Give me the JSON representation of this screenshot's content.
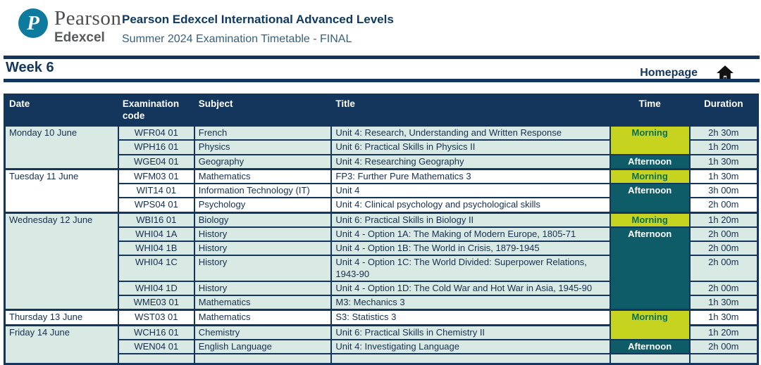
{
  "header": {
    "logo_brand": "Pearson",
    "logo_sub": "Edexcel",
    "logo_letter": "P",
    "title": "Pearson Edexcel International Advanced Levels",
    "subtitle": "Summer 2024 Examination Timetable - FINAL"
  },
  "weekbar": {
    "week_label": "Week 6",
    "homepage_label": "Homepage",
    "home_icon": "home-icon"
  },
  "colors": {
    "navy": "#14365c",
    "mint_row": "#d9eae5",
    "morning_bg": "#c6d41f",
    "morning_text": "#0d6e52",
    "afternoon_bg": "#0d5c68",
    "afternoon_text": "#ffffff",
    "logo_teal": "#0e7a9e",
    "brand_gray": "#58595b"
  },
  "table": {
    "columns": [
      "Date",
      "Examination code",
      "Subject",
      "Title",
      "Time",
      "Duration"
    ],
    "rows": [
      {
        "date": "Monday 10 June",
        "dateSpan": 3,
        "shade": "mint",
        "groupStart": true,
        "time": "Morning",
        "timeSpan": 2,
        "timeType": "morning",
        "code": "WFR04 01",
        "subject": "French",
        "title": "Unit 4: Research, Understanding and Written Response",
        "duration": "2h 30m"
      },
      {
        "shade": "mint",
        "code": "WPH16 01",
        "subject": "Physics",
        "title": "Unit 6: Practical Skills in Physics II",
        "duration": "1h 20m"
      },
      {
        "shade": "mint",
        "time": "Afternoon",
        "timeSpan": 1,
        "timeType": "afternoon",
        "code": "WGE04 01",
        "subject": "Geography",
        "title": "Unit 4: Researching Geography",
        "duration": "1h 30m"
      },
      {
        "date": "Tuesday 11 June",
        "dateSpan": 3,
        "shade": "white",
        "groupStart": true,
        "time": "Morning",
        "timeSpan": 1,
        "timeType": "morning",
        "code": "WFM03 01",
        "subject": "Mathematics",
        "title": "FP3: Further Pure Mathematics 3",
        "duration": "1h 30m"
      },
      {
        "shade": "white",
        "time": "Afternoon",
        "timeSpan": 2,
        "timeType": "afternoon",
        "code": "WIT14 01",
        "subject": "Information Technology (IT)",
        "title": "Unit 4",
        "duration": "3h 00m"
      },
      {
        "shade": "white",
        "code": "WPS04 01",
        "subject": "Psychology",
        "title": "Unit 4: Clinical psychology and psychological skills",
        "duration": "2h 00m"
      },
      {
        "date": "Wednesday 12 June",
        "dateSpan": 6,
        "shade": "mint",
        "groupStart": true,
        "time": "Morning",
        "timeSpan": 1,
        "timeType": "morning",
        "code": "WBI16 01",
        "subject": "Biology",
        "title": "Unit 6: Practical Skills in Biology II",
        "duration": "1h 20m"
      },
      {
        "shade": "mint",
        "time": "Afternoon",
        "timeSpan": 5,
        "timeType": "afternoon",
        "code": "WHI04 1A",
        "subject": "History",
        "title": "Unit 4 - Option 1A: The Making of Modern Europe, 1805-71",
        "duration": "2h 00m"
      },
      {
        "shade": "mint",
        "code": "WHI04 1B",
        "subject": "History",
        "title": "Unit 4 - Option 1B: The World in Crisis, 1879-1945",
        "duration": "2h 00m"
      },
      {
        "shade": "mint",
        "tall": true,
        "code": "WHI04 1C",
        "subject": "History",
        "title": "Unit 4 - Option 1C: The World Divided: Superpower Relations, 1943-90",
        "duration": "2h 00m"
      },
      {
        "shade": "mint",
        "code": "WHI04 1D",
        "subject": "History",
        "title": "Unit 4 - Option 1D: The Cold War and Hot War in Asia, 1945-90",
        "duration": "2h 00m"
      },
      {
        "shade": "mint",
        "code": "WME03 01",
        "subject": "Mathematics",
        "title": "M3: Mechanics 3",
        "duration": "1h 30m"
      },
      {
        "date": "Thursday 13 June",
        "dateSpan": 1,
        "shade": "white",
        "groupStart": true,
        "time": "Morning",
        "timeSpan": 2,
        "timeType": "morning",
        "code": "WST03 01",
        "subject": "Mathematics",
        "title": "S3: Statistics 3",
        "duration": "1h 30m"
      },
      {
        "date": "Friday 14 June",
        "dateSpan": 3,
        "shade": "mint",
        "groupStart": true,
        "code": "WCH16 01",
        "subject": "Chemistry",
        "title": "Unit 6: Practical Skills in Chemistry II",
        "duration": "1h 20m"
      },
      {
        "shade": "mint",
        "time": "Afternoon",
        "timeSpan": 1,
        "timeType": "afternoon",
        "code": "WEN04 01",
        "subject": "English Language",
        "title": "Unit 4: Investigating Language",
        "duration": "2h 00m"
      },
      {
        "shade": "mint",
        "phantom": true
      }
    ]
  }
}
